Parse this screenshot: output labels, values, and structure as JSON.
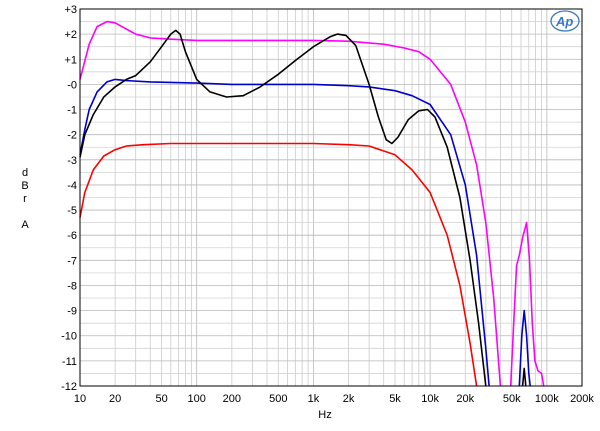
{
  "chart_data": {
    "type": "line",
    "xscale": "log",
    "xlim": [
      10,
      200000
    ],
    "ylim": [
      -12,
      3
    ],
    "grid": true,
    "legend": "none",
    "xlabel": "Hz",
    "ylabel": [
      "d",
      "B",
      "r",
      "",
      "A"
    ],
    "x_ticks": [
      {
        "v": 10,
        "label": "10"
      },
      {
        "v": 20,
        "label": "20"
      },
      {
        "v": 50,
        "label": "50"
      },
      {
        "v": 100,
        "label": "100"
      },
      {
        "v": 200,
        "label": "200"
      },
      {
        "v": 500,
        "label": "500"
      },
      {
        "v": 1000,
        "label": "1k"
      },
      {
        "v": 2000,
        "label": "2k"
      },
      {
        "v": 5000,
        "label": "5k"
      },
      {
        "v": 10000,
        "label": "10k"
      },
      {
        "v": 20000,
        "label": "20k"
      },
      {
        "v": 50000,
        "label": "50k"
      },
      {
        "v": 100000,
        "label": "100k"
      },
      {
        "v": 200000,
        "label": "200k"
      }
    ],
    "y_ticks": [
      {
        "v": 3,
        "label": "+3"
      },
      {
        "v": 2,
        "label": "+2"
      },
      {
        "v": 1,
        "label": "+1"
      },
      {
        "v": 0,
        "label": "-0"
      },
      {
        "v": -1,
        "label": "-1"
      },
      {
        "v": -2,
        "label": "-2"
      },
      {
        "v": -3,
        "label": "-3"
      },
      {
        "v": -4,
        "label": "-4"
      },
      {
        "v": -5,
        "label": "-5"
      },
      {
        "v": -6,
        "label": "-6"
      },
      {
        "v": -7,
        "label": "-7"
      },
      {
        "v": -8,
        "label": "-8"
      },
      {
        "v": -9,
        "label": "-9"
      },
      {
        "v": -10,
        "label": "-10"
      },
      {
        "v": -11,
        "label": "-11"
      },
      {
        "v": -12,
        "label": "-12"
      }
    ],
    "series": [
      {
        "color": "#ff00ff",
        "points": [
          [
            10,
            0.2
          ],
          [
            12,
            1.6
          ],
          [
            14,
            2.3
          ],
          [
            17,
            2.5
          ],
          [
            20,
            2.45
          ],
          [
            25,
            2.2
          ],
          [
            30,
            2.0
          ],
          [
            40,
            1.85
          ],
          [
            60,
            1.8
          ],
          [
            100,
            1.75
          ],
          [
            200,
            1.75
          ],
          [
            500,
            1.75
          ],
          [
            1000,
            1.75
          ],
          [
            2000,
            1.72
          ],
          [
            4000,
            1.6
          ],
          [
            6000,
            1.45
          ],
          [
            8000,
            1.3
          ],
          [
            10000,
            1.0
          ],
          [
            15000,
            0.0
          ],
          [
            20000,
            -1.5
          ],
          [
            25000,
            -3.2
          ],
          [
            30000,
            -5.5
          ],
          [
            35000,
            -8.5
          ],
          [
            40000,
            -12.0
          ],
          [
            40001,
            null
          ],
          [
            49000,
            -12.0
          ],
          [
            52000,
            -9.5
          ],
          [
            55000,
            -7.2
          ],
          [
            58000,
            -6.8
          ],
          [
            62000,
            -6.1
          ],
          [
            67000,
            -5.5
          ],
          [
            71000,
            -7.0
          ],
          [
            75000,
            -9.5
          ],
          [
            79000,
            -11.0
          ],
          [
            84000,
            -11.4
          ],
          [
            90000,
            -11.5
          ],
          [
            94000,
            -12.0
          ]
        ]
      },
      {
        "color": "#0000cc",
        "points": [
          [
            10,
            -2.8
          ],
          [
            11,
            -1.8
          ],
          [
            12,
            -1.0
          ],
          [
            14,
            -0.3
          ],
          [
            17,
            0.1
          ],
          [
            20,
            0.2
          ],
          [
            25,
            0.15
          ],
          [
            40,
            0.1
          ],
          [
            100,
            0.05
          ],
          [
            200,
            0.0
          ],
          [
            500,
            0.0
          ],
          [
            1000,
            0.0
          ],
          [
            2000,
            -0.05
          ],
          [
            3000,
            -0.1
          ],
          [
            5000,
            -0.25
          ],
          [
            7000,
            -0.45
          ],
          [
            10000,
            -0.8
          ],
          [
            15000,
            -2.0
          ],
          [
            20000,
            -4.0
          ],
          [
            25000,
            -6.8
          ],
          [
            30000,
            -10.5
          ],
          [
            32000,
            -12.0
          ],
          [
            32001,
            null
          ],
          [
            58000,
            -12.0
          ],
          [
            61000,
            -10.0
          ],
          [
            64000,
            -9.0
          ],
          [
            67000,
            -10.0
          ],
          [
            70000,
            -11.5
          ],
          [
            72000,
            -12.0
          ]
        ]
      },
      {
        "color": "#000000",
        "points": [
          [
            10,
            -2.9
          ],
          [
            11,
            -2.0
          ],
          [
            13,
            -1.2
          ],
          [
            16,
            -0.5
          ],
          [
            20,
            -0.1
          ],
          [
            25,
            0.2
          ],
          [
            30,
            0.35
          ],
          [
            40,
            0.9
          ],
          [
            50,
            1.5
          ],
          [
            60,
            2.0
          ],
          [
            66,
            2.15
          ],
          [
            72,
            2.0
          ],
          [
            80,
            1.3
          ],
          [
            100,
            0.2
          ],
          [
            130,
            -0.3
          ],
          [
            180,
            -0.5
          ],
          [
            250,
            -0.45
          ],
          [
            350,
            -0.1
          ],
          [
            500,
            0.4
          ],
          [
            700,
            0.95
          ],
          [
            1000,
            1.5
          ],
          [
            1400,
            1.9
          ],
          [
            1600,
            2.0
          ],
          [
            1900,
            1.95
          ],
          [
            2300,
            1.55
          ],
          [
            3000,
            0.0
          ],
          [
            3600,
            -1.3
          ],
          [
            4200,
            -2.2
          ],
          [
            4700,
            -2.35
          ],
          [
            5300,
            -2.1
          ],
          [
            6500,
            -1.4
          ],
          [
            8000,
            -1.05
          ],
          [
            9500,
            -1.0
          ],
          [
            11000,
            -1.3
          ],
          [
            14000,
            -2.5
          ],
          [
            18000,
            -4.5
          ],
          [
            22000,
            -7.0
          ],
          [
            26000,
            -9.5
          ],
          [
            30000,
            -12.0
          ],
          [
            30001,
            null
          ],
          [
            62000,
            -12.0
          ],
          [
            64000,
            -11.3
          ],
          [
            66000,
            -12.0
          ]
        ]
      },
      {
        "color": "#ff0000",
        "points": [
          [
            10,
            -5.3
          ],
          [
            11,
            -4.3
          ],
          [
            13,
            -3.4
          ],
          [
            16,
            -2.85
          ],
          [
            20,
            -2.6
          ],
          [
            25,
            -2.45
          ],
          [
            35,
            -2.4
          ],
          [
            60,
            -2.35
          ],
          [
            200,
            -2.35
          ],
          [
            500,
            -2.35
          ],
          [
            1000,
            -2.35
          ],
          [
            2000,
            -2.4
          ],
          [
            3000,
            -2.45
          ],
          [
            5000,
            -2.8
          ],
          [
            7000,
            -3.4
          ],
          [
            10000,
            -4.3
          ],
          [
            14000,
            -6.0
          ],
          [
            18000,
            -8.0
          ],
          [
            22000,
            -10.3
          ],
          [
            25000,
            -12.0
          ]
        ]
      }
    ]
  }
}
